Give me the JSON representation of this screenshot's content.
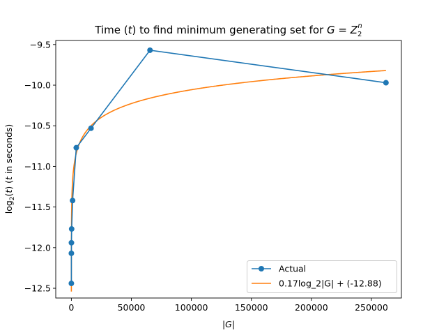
{
  "chart_data": {
    "type": "line",
    "title_prefix": "Time (",
    "title_t": "t",
    "title_middle": ") to find minimum generating set for ",
    "title_G": "G",
    "title_eq": " = ",
    "title_Z": "Z",
    "title_sub": "2",
    "title_sup": "n",
    "xlabel_pre": "|",
    "xlabel_var": "G",
    "xlabel_post": "|",
    "ylabel_pre": "log",
    "ylabel_sub": "2",
    "ylabel_mid": "(",
    "ylabel_t": "t",
    "ylabel_mid2": ") (",
    "ylabel_t2": "t",
    "ylabel_post": " in seconds)",
    "xlim": [
      -13000,
      275000
    ],
    "ylim": [
      -12.62,
      -9.45
    ],
    "xticks": [
      0,
      50000,
      100000,
      150000,
      200000,
      250000
    ],
    "xtick_labels": [
      "0",
      "50000",
      "100000",
      "150000",
      "200000",
      "250000"
    ],
    "yticks": [
      -12.5,
      -12.0,
      -11.5,
      -11.0,
      -10.5,
      -10.0,
      -9.5
    ],
    "ytick_labels": [
      "−12.5",
      "−12.0",
      "−11.5",
      "−11.0",
      "−10.5",
      "−10.0",
      "−9.5"
    ],
    "series": [
      {
        "name": "Actual",
        "kind": "line-marker",
        "color": "#1f77b4",
        "x": [
          4,
          16,
          64,
          256,
          1024,
          4096,
          16384,
          65536,
          262144
        ],
        "y": [
          -12.44,
          -12.07,
          -11.94,
          -11.77,
          -11.42,
          -10.77,
          -10.53,
          -9.57,
          -9.97
        ]
      },
      {
        "name": "0.17log_2|G| + (-12.88)",
        "kind": "fit-curve",
        "color": "#ff7f0e",
        "coef": 0.17,
        "intercept": -12.88,
        "x_start": 4,
        "x_end": 262144
      }
    ],
    "legend_position": "lower right",
    "grid": false
  }
}
